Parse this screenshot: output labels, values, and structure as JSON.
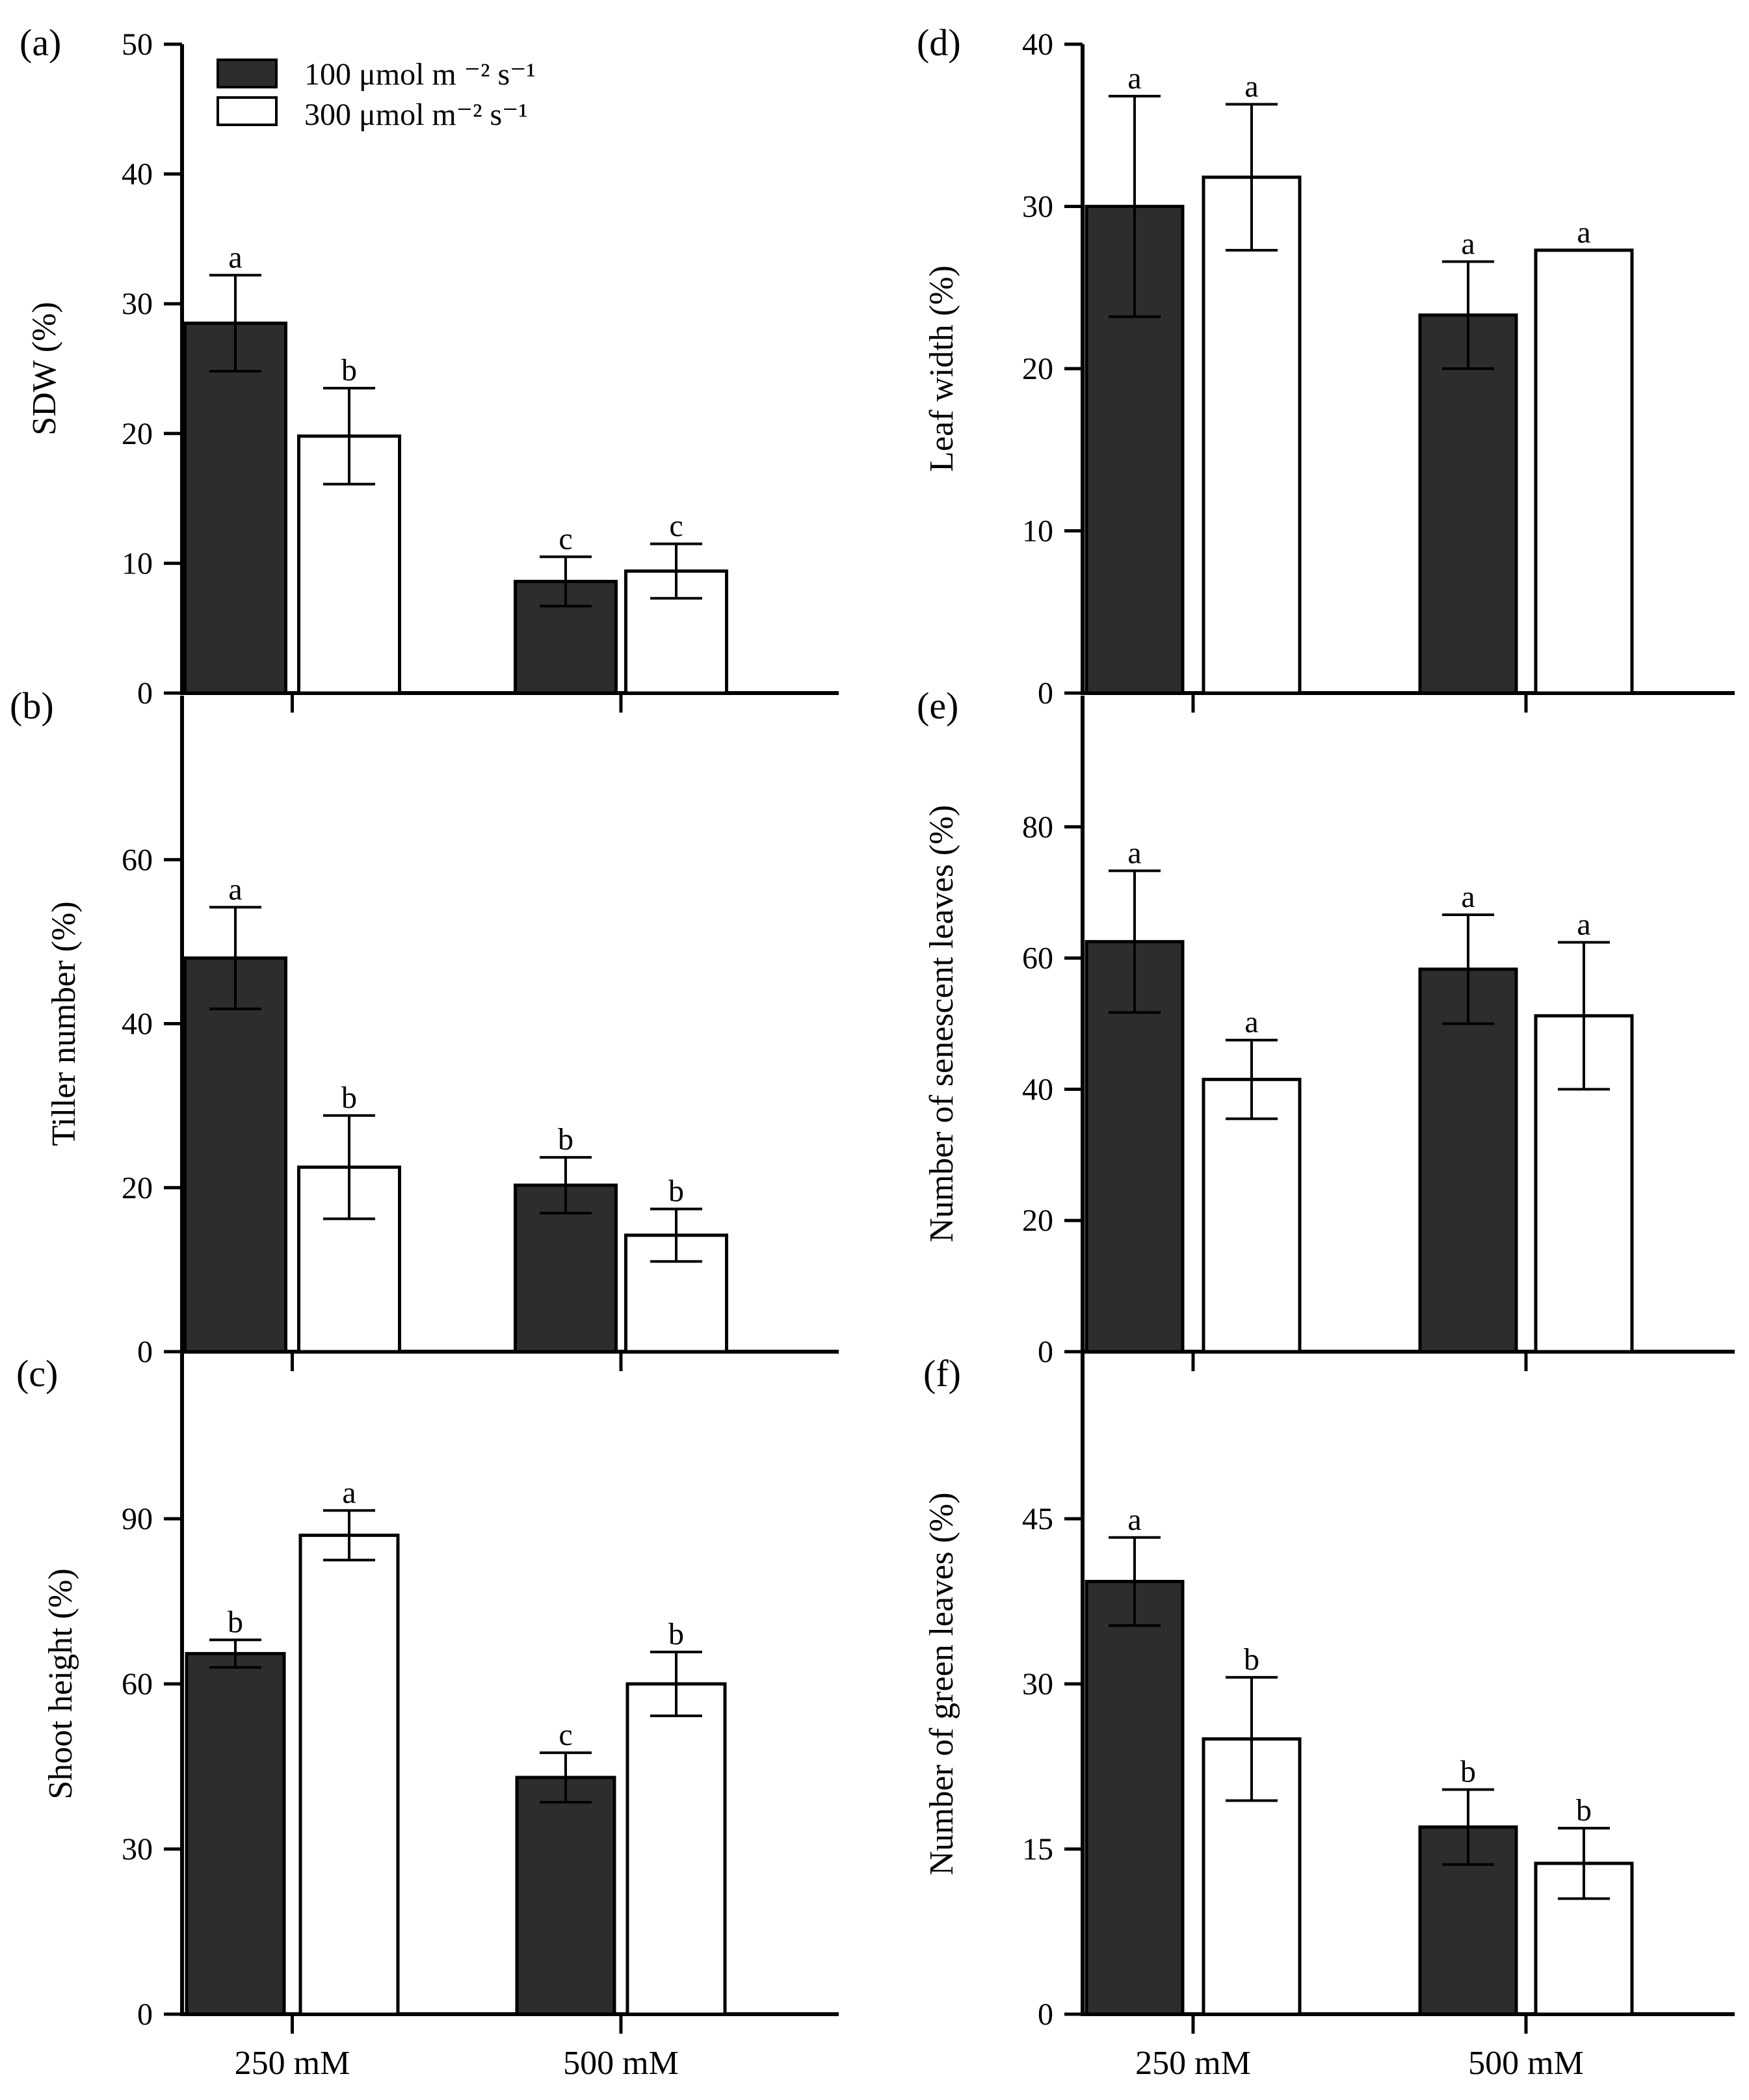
{
  "figure": {
    "legend": {
      "entries": [
        {
          "label": "100 μmol m ⁻² s⁻¹",
          "color": "#2d2d2d"
        },
        {
          "label": "300 μmol m⁻²  s⁻¹",
          "color": "#ffffff"
        }
      ]
    }
  },
  "chart_data": [
    {
      "id": "a",
      "panel_label": "(a)",
      "type": "bar",
      "categories": [
        "250 mM",
        "500 mM"
      ],
      "xlabel": "",
      "ylabel": "SDW (%)",
      "ylim": [
        0,
        50
      ],
      "yticks": [
        0,
        10,
        20,
        30,
        40,
        50
      ],
      "show_category_labels": false,
      "series": [
        {
          "name": "100 μmol m ⁻² s⁻¹",
          "color": "#2d2d2d",
          "values": [
            28.5,
            8.6
          ],
          "errors": [
            3.7,
            1.9
          ],
          "letters": [
            "a",
            "c"
          ]
        },
        {
          "name": "300 μmol m⁻²  s⁻¹",
          "color": "#ffffff",
          "values": [
            19.8,
            9.4
          ],
          "errors": [
            3.7,
            2.1
          ],
          "letters": [
            "b",
            "c"
          ]
        }
      ]
    },
    {
      "id": "b",
      "panel_label": "(b)",
      "type": "bar",
      "categories": [
        "250 mM",
        "500 mM"
      ],
      "xlabel": "",
      "ylabel": "Tiller number (%)",
      "ylim": [
        0,
        80
      ],
      "yticks": [
        0,
        20,
        40,
        60
      ],
      "show_category_labels": false,
      "series": [
        {
          "name": "100 μmol m ⁻² s⁻¹",
          "color": "#2d2d2d",
          "values": [
            48,
            20.3
          ],
          "errors": [
            6.2,
            3.4
          ],
          "letters": [
            "a",
            "b"
          ]
        },
        {
          "name": "300 μmol m⁻²  s⁻¹",
          "color": "#ffffff",
          "values": [
            22.5,
            14.2
          ],
          "errors": [
            6.3,
            3.2
          ],
          "letters": [
            "b",
            "b"
          ]
        }
      ]
    },
    {
      "id": "c",
      "panel_label": "(c)",
      "type": "bar",
      "categories": [
        "250 mM",
        "500 mM"
      ],
      "xlabel": "",
      "ylabel": "Shoot height (%)",
      "ylim": [
        0,
        120
      ],
      "yticks": [
        0,
        30,
        60,
        90
      ],
      "show_category_labels": true,
      "series": [
        {
          "name": "100 μmol m ⁻² s⁻¹",
          "color": "#2d2d2d",
          "values": [
            65.5,
            43
          ],
          "errors": [
            2.5,
            4.5
          ],
          "letters": [
            "b",
            "c"
          ]
        },
        {
          "name": "300 μmol m⁻²  s⁻¹",
          "color": "#ffffff",
          "values": [
            87,
            60
          ],
          "errors": [
            4.5,
            5.8
          ],
          "letters": [
            "a",
            "b"
          ]
        }
      ]
    },
    {
      "id": "d",
      "panel_label": "(d)",
      "type": "bar",
      "categories": [
        "250 mM",
        "500 mM"
      ],
      "xlabel": "",
      "ylabel": "Leaf width (%)",
      "ylim": [
        0,
        40
      ],
      "yticks": [
        0,
        10,
        20,
        30,
        40
      ],
      "show_category_labels": false,
      "series": [
        {
          "name": "100 μmol m ⁻² s⁻¹",
          "color": "#2d2d2d",
          "values": [
            30,
            23.3
          ],
          "errors": [
            6.8,
            3.3
          ],
          "letters": [
            "a",
            "a"
          ]
        },
        {
          "name": "300 μmol m⁻²  s⁻¹",
          "color": "#ffffff",
          "values": [
            31.8,
            27.3
          ],
          "errors": [
            4.5,
            0
          ],
          "letters": [
            "a",
            "a"
          ]
        }
      ]
    },
    {
      "id": "e",
      "panel_label": "(e)",
      "type": "bar",
      "categories": [
        "250 mM",
        "500 mM"
      ],
      "xlabel": "",
      "ylabel": "Number of senescent leaves (%)",
      "ylim": [
        0,
        100
      ],
      "yticks": [
        0,
        20,
        40,
        60,
        80
      ],
      "show_category_labels": false,
      "series": [
        {
          "name": "100 μmol m ⁻² s⁻¹",
          "color": "#2d2d2d",
          "values": [
            62.5,
            58.3
          ],
          "errors": [
            10.8,
            8.3
          ],
          "letters": [
            "a",
            "a"
          ]
        },
        {
          "name": "300 μmol m⁻²  s⁻¹",
          "color": "#ffffff",
          "values": [
            41.5,
            51.2
          ],
          "errors": [
            6,
            11.2
          ],
          "letters": [
            "a",
            "a"
          ]
        }
      ]
    },
    {
      "id": "f",
      "panel_label": "(f)",
      "type": "bar",
      "categories": [
        "250 mM",
        "500 mM"
      ],
      "xlabel": "",
      "ylabel": "Number of green leaves (%)",
      "ylim": [
        0,
        60
      ],
      "yticks": [
        0,
        15,
        30,
        45
      ],
      "show_category_labels": true,
      "series": [
        {
          "name": "100 μmol m ⁻² s⁻¹",
          "color": "#2d2d2d",
          "values": [
            39.3,
            17
          ],
          "errors": [
            4,
            3.4
          ],
          "letters": [
            "a",
            "b"
          ]
        },
        {
          "name": "300 μmol m⁻²  s⁻¹",
          "color": "#ffffff",
          "values": [
            25,
            13.7
          ],
          "errors": [
            5.6,
            3.2
          ],
          "letters": [
            "b",
            "b"
          ]
        }
      ]
    }
  ]
}
